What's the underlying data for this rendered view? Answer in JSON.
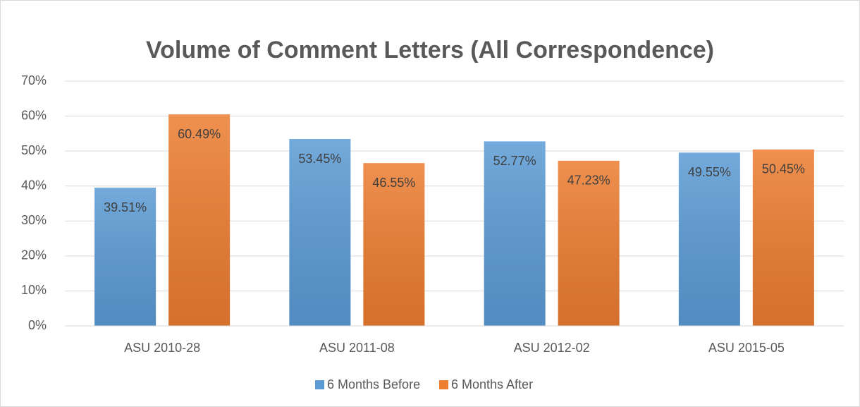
{
  "chart_data": {
    "type": "bar",
    "title": "Volume of Comment Letters (All Correspondence)",
    "categories": [
      "ASU 2010-28",
      "ASU 2011-08",
      "ASU 2012-02",
      "ASU 2015-05"
    ],
    "series": [
      {
        "name": "6 Months Before",
        "color": "#5b9bd5",
        "values": [
          39.51,
          53.45,
          52.77,
          49.55
        ],
        "value_labels": [
          "39.51%",
          "53.45%",
          "52.77%",
          "49.55%"
        ]
      },
      {
        "name": "6 Months After",
        "color": "#ed7d31",
        "values": [
          60.49,
          46.55,
          47.23,
          50.45
        ],
        "value_labels": [
          "60.49%",
          "46.55%",
          "47.23%",
          "50.45%"
        ]
      }
    ],
    "ylim": [
      0,
      70
    ],
    "yticks": [
      {
        "value": 0,
        "label": "0%"
      },
      {
        "value": 10,
        "label": "10%"
      },
      {
        "value": 20,
        "label": "20%"
      },
      {
        "value": 30,
        "label": "30%"
      },
      {
        "value": 40,
        "label": "40%"
      },
      {
        "value": 50,
        "label": "50%"
      },
      {
        "value": 60,
        "label": "60%"
      },
      {
        "value": 70,
        "label": "70%"
      }
    ],
    "grid": true,
    "legend": "bottom"
  }
}
